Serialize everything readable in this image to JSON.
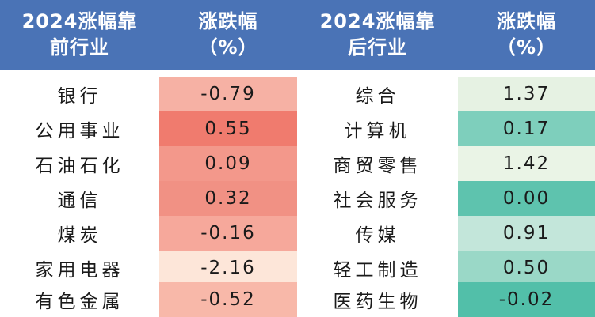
{
  "header": {
    "col1": [
      "2024涨幅靠",
      "前行业"
    ],
    "col2": [
      "涨跌幅",
      "（%）"
    ],
    "col3": [
      "2024涨幅靠",
      "后行业"
    ],
    "col4": [
      "涨跌幅",
      "（%）"
    ]
  },
  "rows": [
    {
      "top_industry": "银行",
      "top_change": "-0.79",
      "bottom_industry": "综合",
      "bottom_change": "1.37"
    },
    {
      "top_industry": "公用事业",
      "top_change": "0.55",
      "bottom_industry": "计算机",
      "bottom_change": "0.17"
    },
    {
      "top_industry": "石油石化",
      "top_change": "0.09",
      "bottom_industry": "商贸零售",
      "bottom_change": "1.42"
    },
    {
      "top_industry": "通信",
      "top_change": "0.32",
      "bottom_industry": "社会服务",
      "bottom_change": "0.00"
    },
    {
      "top_industry": "煤炭",
      "top_change": "-0.16",
      "bottom_industry": "传媒",
      "bottom_change": "0.91"
    },
    {
      "top_industry": "家用电器",
      "top_change": "-2.16",
      "bottom_industry": "轻工制造",
      "bottom_change": "0.50"
    },
    {
      "top_industry": "有色金属",
      "top_change": "-0.52",
      "bottom_industry": "医药生物",
      "bottom_change": "-0.02"
    }
  ],
  "colors": {
    "header_bg": "#4a73b6",
    "top_change_cells": [
      "#f6b1a4",
      "#f07b6e",
      "#f3988b",
      "#f19184",
      "#f6a89b",
      "#fde6d9",
      "#f8b8a9"
    ],
    "bottom_change_cells": [
      "#e6f2e3",
      "#7ecfbc",
      "#eaf4e6",
      "#5ec3ae",
      "#c3e6da",
      "#9ad8c7",
      "#52bfa9"
    ]
  }
}
